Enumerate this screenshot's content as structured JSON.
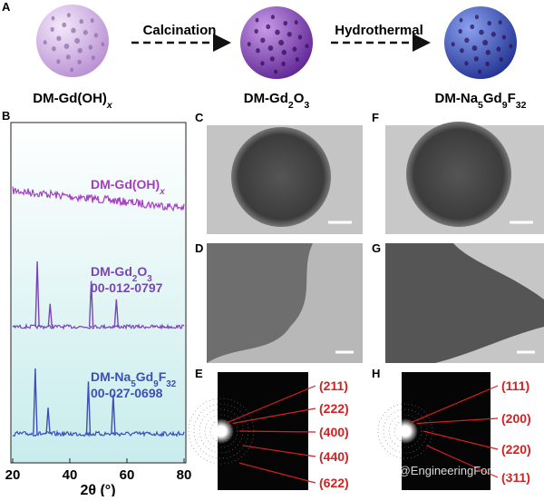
{
  "panel_a": {
    "label": "A",
    "steps": [
      "Calcination",
      "Hydrothermal"
    ],
    "products": [
      [
        "DM-Gd(OH)",
        "x"
      ],
      [
        "DM-Gd",
        "2",
        "O",
        "3"
      ],
      [
        "DM-Na",
        "5",
        "Gd",
        "9",
        "F",
        "32"
      ]
    ]
  },
  "chart_data": {
    "type": "line",
    "label": "B",
    "xlabel": "2θ (°)",
    "xlim": [
      20,
      80
    ],
    "xticks": [
      20,
      40,
      60,
      80
    ],
    "series": [
      {
        "name": [
          "DM-Gd(OH)",
          "x"
        ],
        "color": "#a63cc4",
        "x": [],
        "values": []
      },
      {
        "name": [
          "DM-Gd",
          "2",
          "O",
          "3"
        ],
        "ref": "00-012-0797",
        "color": "#7a44b8",
        "x": [
          28.6,
          33.1,
          47.5,
          56.3
        ],
        "values": [
          100,
          35,
          70,
          42
        ]
      },
      {
        "name": [
          "DM-Na",
          "5",
          "Gd",
          "9",
          "F",
          "32"
        ],
        "ref": "00-027-0698",
        "color": "#3c4fb8",
        "x": [
          27.9,
          32.4,
          46.5,
          55.2
        ],
        "values": [
          100,
          40,
          80,
          60
        ]
      }
    ]
  },
  "images": {
    "labels": [
      "C",
      "F",
      "D",
      "G",
      "E",
      "H"
    ]
  },
  "saed": {
    "E": [
      "(211)",
      "(222)",
      "(400)",
      "(440)",
      "(622)"
    ],
    "H": [
      "(111)",
      "(200)",
      "(220)",
      "(311)"
    ]
  },
  "watermark": "知乎 @EngineeringForLife"
}
